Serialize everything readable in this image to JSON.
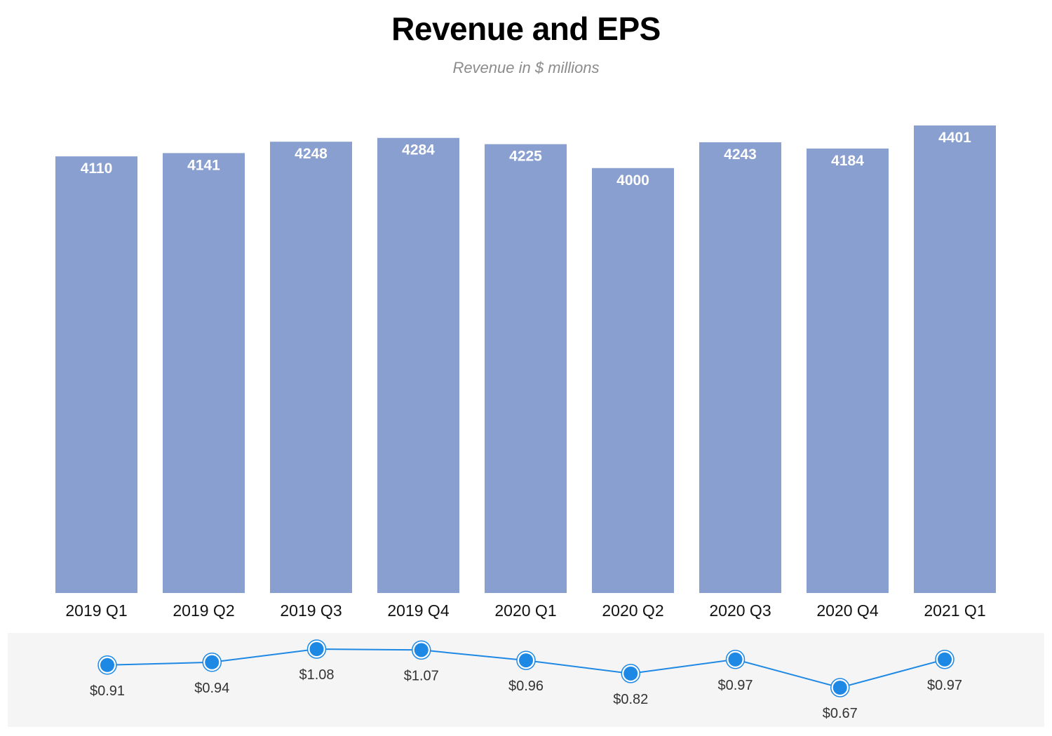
{
  "chart_data": {
    "type": "bar",
    "title": "Revenue and EPS",
    "subtitle": "Revenue in $ millions",
    "categories": [
      "2019 Q1",
      "2019 Q2",
      "2019 Q3",
      "2019 Q4",
      "2020 Q1",
      "2020 Q2",
      "2020 Q3",
      "2020 Q4",
      "2021 Q1"
    ],
    "series": [
      {
        "values": [
          4110,
          4141,
          4248,
          4284,
          4225,
          4000,
          4243,
          4184,
          4401
        ],
        "color": "#889fcf"
      },
      {
        "type": "line",
        "values": [
          0.91,
          0.94,
          1.08,
          1.07,
          0.96,
          0.82,
          0.97,
          0.67,
          0.97
        ],
        "labels": [
          "$0.91",
          "$0.94",
          "$1.08",
          "$1.07",
          "$0.96",
          "$0.82",
          "$0.97",
          "$0.67",
          "$0.97"
        ],
        "color": "#1e88e5"
      }
    ],
    "ylim": [
      0,
      4401
    ],
    "eps_panel_background": "#f5f5f5",
    "grid": false
  }
}
